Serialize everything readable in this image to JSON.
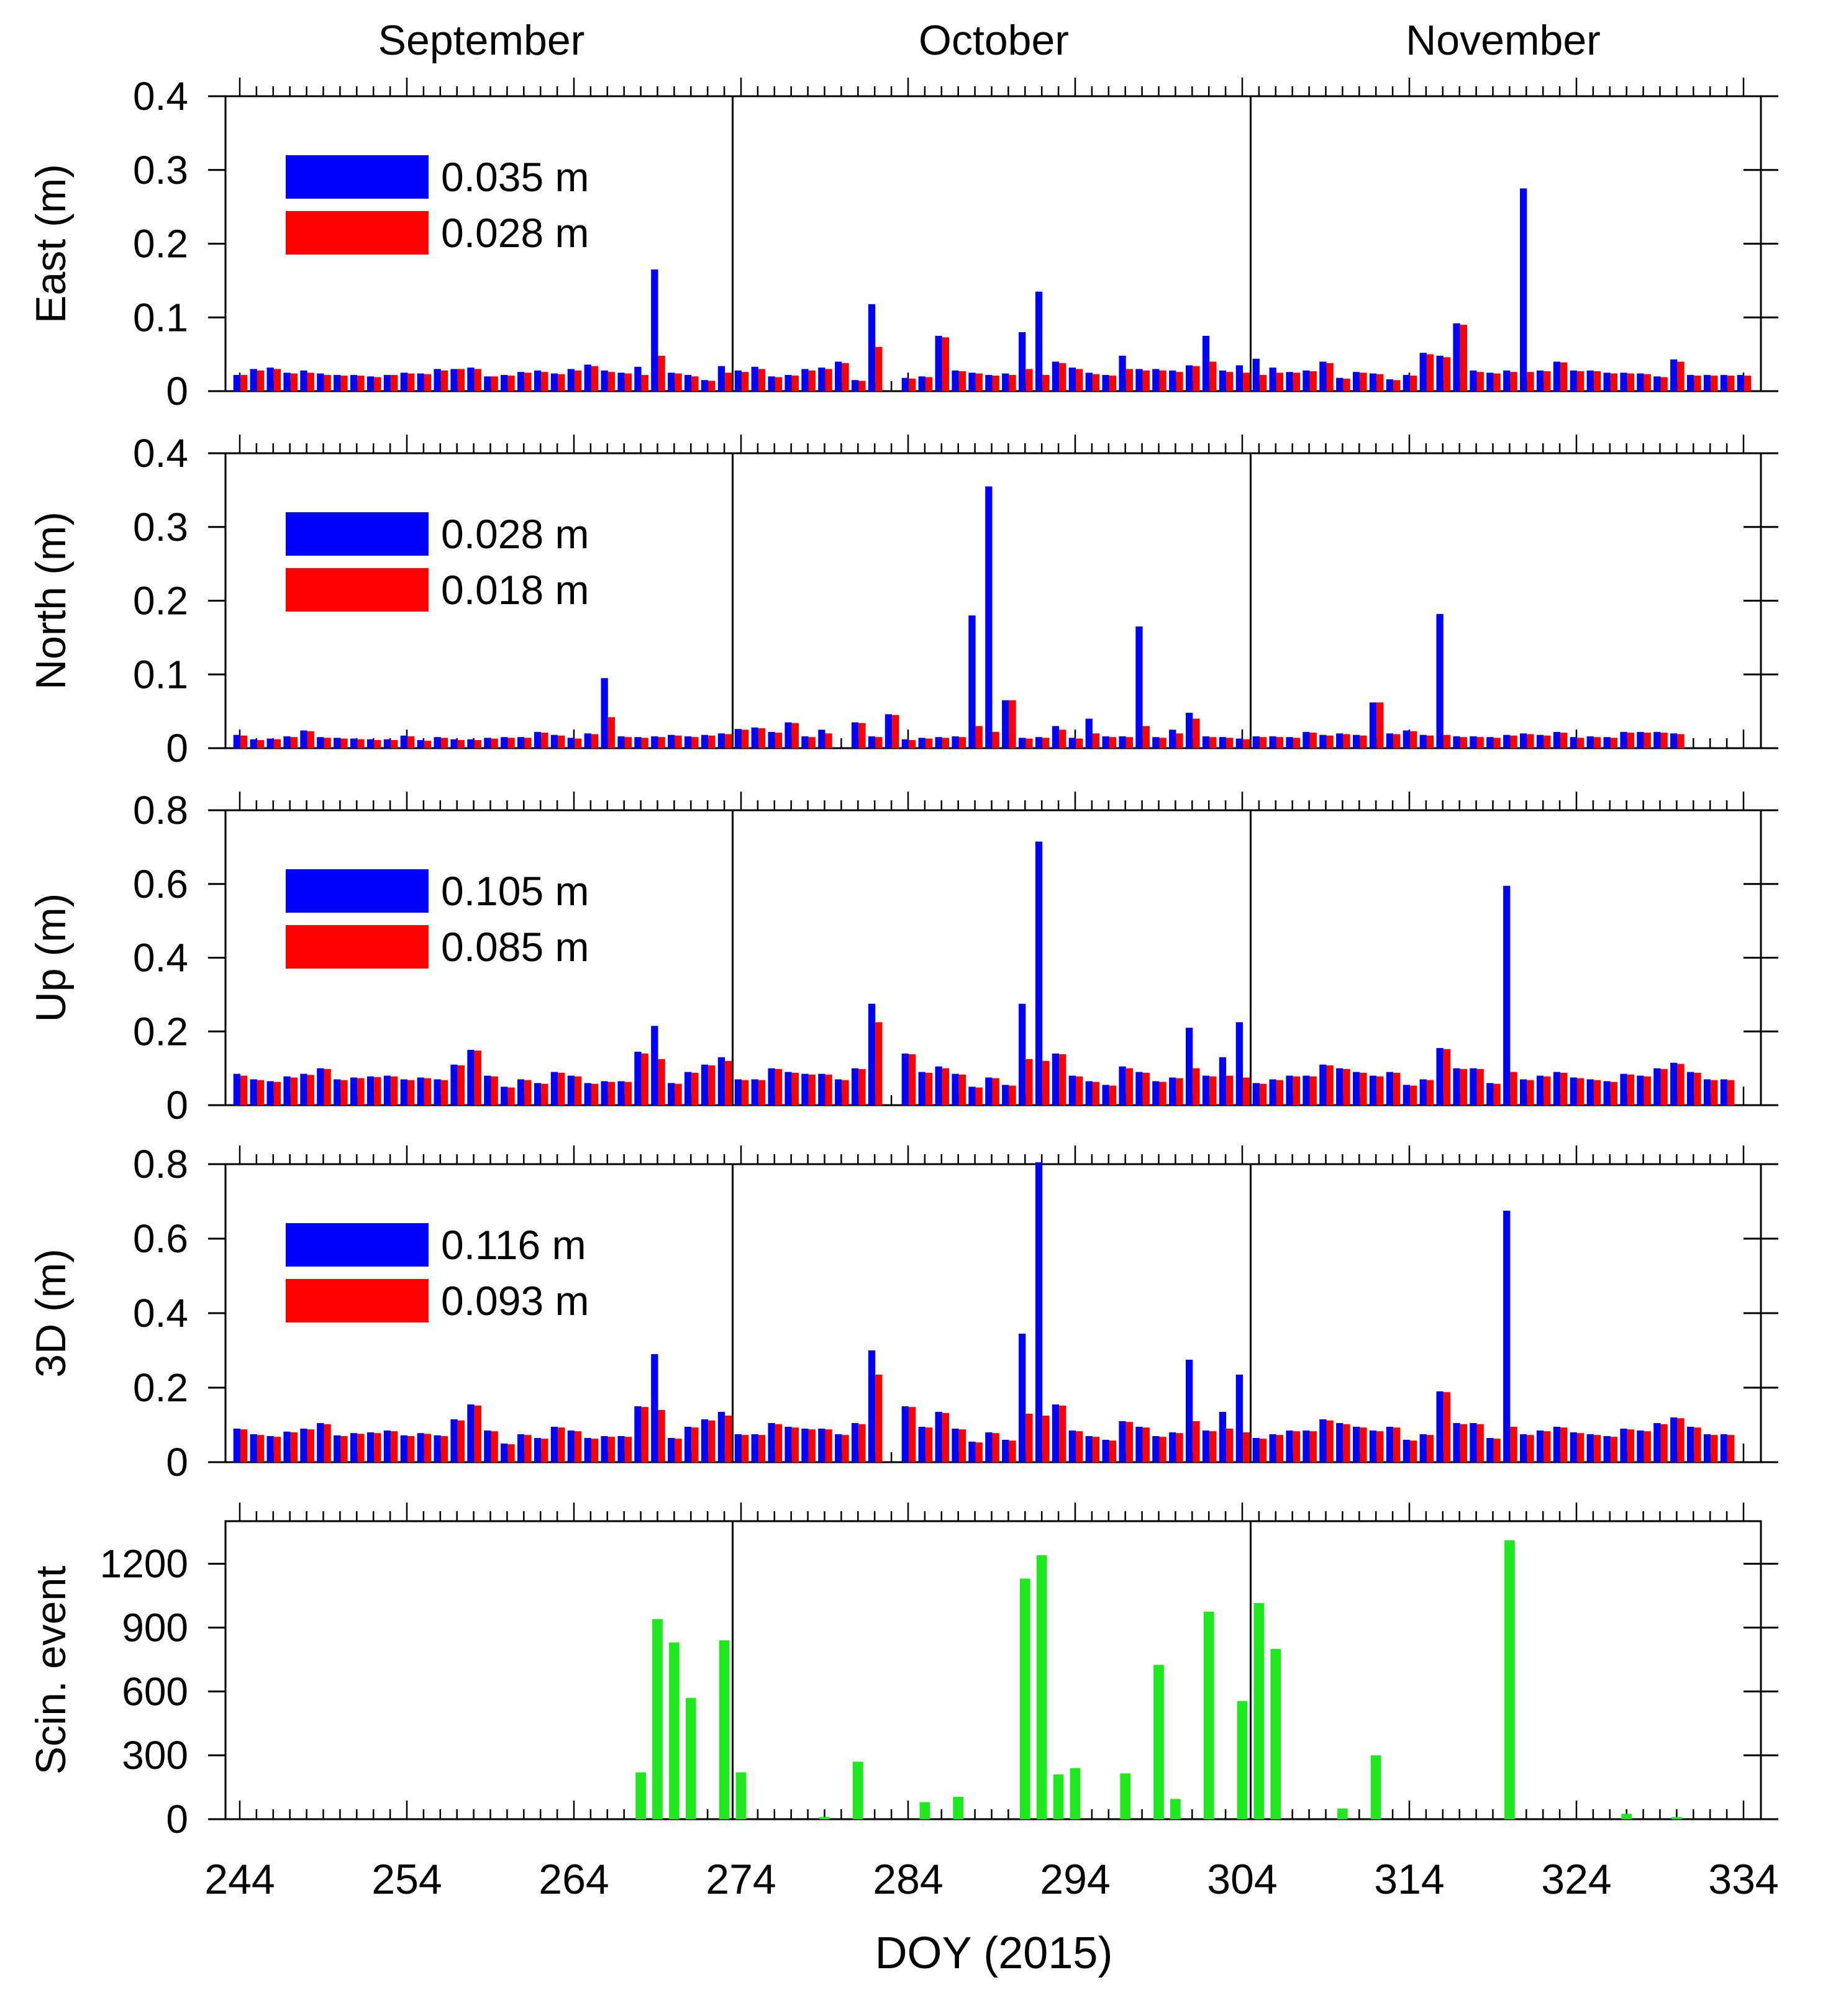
{
  "figure": {
    "xlabel": "DOY (2015)"
  },
  "month_labels": [
    "September",
    "October",
    "November"
  ],
  "month_boundaries": [
    274,
    305
  ],
  "x_ticks": [
    244,
    254,
    264,
    274,
    284,
    294,
    304,
    314,
    324,
    334
  ],
  "colors": {
    "series_a": "#0000ff",
    "series_b": "#ff0000",
    "scintillation": "#1ee81e",
    "axis": "#000000"
  },
  "chart_data": [
    {
      "type": "bar",
      "ylabel": "East (m)",
      "ylim": [
        0,
        0.4
      ],
      "yticks": [
        "0",
        "0.1",
        "0.2",
        "0.3",
        "0.4"
      ],
      "ytick_values": [
        0,
        0.1,
        0.2,
        0.3,
        0.4
      ],
      "legend": [
        "0.035 m",
        "0.028 m"
      ],
      "legend_position": "top-left",
      "x_start": 244,
      "series": [
        {
          "name": "0.035 m",
          "values": [
            0.022,
            0.03,
            0.032,
            0.025,
            0.028,
            0.024,
            0.022,
            0.022,
            0.02,
            0.022,
            0.025,
            0.024,
            0.03,
            0.03,
            0.032,
            0.02,
            0.022,
            0.026,
            0.028,
            0.024,
            0.03,
            0.036,
            0.028,
            0.025,
            0.033,
            0.165,
            0.025,
            0.022,
            0.015,
            0.034,
            0.028,
            0.033,
            0.02,
            0.022,
            0.03,
            0.032,
            0.04,
            0.015,
            0.118,
            null,
            0.018,
            0.02,
            0.075,
            0.028,
            0.025,
            0.022,
            0.024,
            0.08,
            0.135,
            0.04,
            0.032,
            0.025,
            0.022,
            0.048,
            0.03,
            0.03,
            0.028,
            0.035,
            0.075,
            0.028,
            0.035,
            0.044,
            0.032,
            0.026,
            0.028,
            0.04,
            0.018,
            0.026,
            0.024,
            0.016,
            0.022,
            0.052,
            0.048,
            0.092,
            0.028,
            0.025,
            0.028,
            0.275,
            0.028,
            0.04,
            0.028,
            0.028,
            0.025,
            0.025,
            0.024,
            0.02,
            0.043,
            0.022,
            0.022,
            0.022,
            0.022
          ]
        },
        {
          "name": "0.028 m",
          "values": [
            0.022,
            0.028,
            0.03,
            0.024,
            0.025,
            0.022,
            0.021,
            0.021,
            0.019,
            0.022,
            0.024,
            0.023,
            0.028,
            0.03,
            0.03,
            0.02,
            0.021,
            0.025,
            0.026,
            0.023,
            0.028,
            0.034,
            0.026,
            0.024,
            0.022,
            0.048,
            0.024,
            0.02,
            0.014,
            0.025,
            0.026,
            0.03,
            0.019,
            0.021,
            0.028,
            0.03,
            0.038,
            0.014,
            0.06,
            null,
            0.017,
            0.019,
            0.073,
            0.027,
            0.024,
            0.021,
            0.022,
            0.03,
            0.022,
            0.038,
            0.03,
            0.023,
            0.021,
            0.03,
            0.028,
            0.028,
            0.026,
            0.034,
            0.04,
            0.026,
            0.025,
            0.022,
            0.025,
            0.025,
            0.027,
            0.038,
            0.017,
            0.025,
            0.023,
            0.015,
            0.021,
            0.05,
            0.046,
            0.09,
            0.026,
            0.024,
            0.026,
            0.026,
            0.027,
            0.039,
            0.027,
            0.027,
            0.024,
            0.024,
            0.023,
            0.019,
            0.04,
            0.021,
            0.021,
            0.021,
            0.021
          ]
        }
      ]
    },
    {
      "type": "bar",
      "ylabel": "North (m)",
      "ylim": [
        0,
        0.4
      ],
      "yticks": [
        "0",
        "0.1",
        "0.2",
        "0.3",
        "0.4"
      ],
      "ytick_values": [
        0,
        0.1,
        0.2,
        0.3,
        0.4
      ],
      "legend": [
        "0.028 m",
        "0.018 m"
      ],
      "legend_position": "top-left",
      "x_start": 244,
      "series": [
        {
          "name": "0.028 m",
          "values": [
            0.018,
            0.012,
            0.013,
            0.016,
            0.024,
            0.015,
            0.014,
            0.013,
            0.012,
            0.012,
            0.017,
            0.011,
            0.015,
            0.012,
            0.012,
            0.014,
            0.015,
            0.015,
            0.022,
            0.018,
            0.014,
            0.02,
            0.095,
            0.016,
            0.015,
            0.016,
            0.018,
            0.016,
            0.018,
            0.02,
            0.026,
            0.028,
            0.022,
            0.035,
            0.016,
            0.025,
            null,
            0.035,
            0.016,
            0.046,
            0.012,
            0.014,
            0.015,
            0.016,
            0.18,
            0.355,
            0.065,
            0.014,
            0.015,
            0.03,
            0.014,
            0.04,
            0.016,
            0.016,
            0.165,
            0.015,
            0.025,
            0.048,
            0.016,
            0.015,
            0.013,
            0.016,
            0.016,
            0.015,
            0.022,
            0.018,
            0.02,
            0.018,
            0.062,
            0.02,
            0.024,
            0.018,
            0.182,
            0.016,
            0.016,
            0.015,
            0.018,
            0.02,
            0.018,
            0.022,
            0.015,
            0.016,
            0.015,
            0.022,
            0.022,
            0.022,
            0.02
          ]
        },
        {
          "name": "0.018 m",
          "values": [
            0.017,
            0.011,
            0.012,
            0.015,
            0.023,
            0.014,
            0.013,
            0.012,
            0.011,
            0.011,
            0.016,
            0.01,
            0.014,
            0.011,
            0.011,
            0.013,
            0.014,
            0.014,
            0.021,
            0.017,
            0.013,
            0.019,
            0.042,
            0.015,
            0.014,
            0.015,
            0.017,
            0.015,
            0.017,
            0.019,
            0.025,
            0.027,
            0.021,
            0.034,
            0.015,
            0.02,
            null,
            0.034,
            0.015,
            0.045,
            0.011,
            0.013,
            0.014,
            0.015,
            0.03,
            0.022,
            0.065,
            0.013,
            0.014,
            0.025,
            0.013,
            0.02,
            0.015,
            0.015,
            0.03,
            0.014,
            0.02,
            0.04,
            0.015,
            0.014,
            0.012,
            0.015,
            0.015,
            0.014,
            0.021,
            0.017,
            0.019,
            0.017,
            0.062,
            0.019,
            0.023,
            0.017,
            0.018,
            0.015,
            0.015,
            0.014,
            0.017,
            0.019,
            0.017,
            0.021,
            0.014,
            0.015,
            0.014,
            0.021,
            0.021,
            0.021,
            0.019
          ]
        }
      ]
    },
    {
      "type": "bar",
      "ylabel": "Up (m)",
      "ylim": [
        0,
        0.8
      ],
      "yticks": [
        "0",
        "0.2",
        "0.4",
        "0.6",
        "0.8"
      ],
      "ytick_values": [
        0,
        0.2,
        0.4,
        0.6,
        0.8
      ],
      "legend": [
        "0.105 m",
        "0.085 m"
      ],
      "legend_position": "top-left",
      "x_start": 244,
      "series": [
        {
          "name": "0.105 m",
          "values": [
            0.085,
            0.07,
            0.065,
            0.078,
            0.085,
            0.1,
            0.07,
            0.075,
            0.078,
            0.08,
            0.07,
            0.075,
            0.07,
            0.11,
            0.15,
            0.08,
            0.05,
            0.07,
            0.06,
            0.09,
            0.08,
            0.06,
            0.065,
            0.065,
            0.145,
            0.215,
            0.06,
            0.09,
            0.11,
            0.13,
            0.07,
            0.07,
            0.1,
            0.09,
            0.085,
            0.085,
            0.07,
            0.1,
            0.275,
            null,
            0.14,
            0.09,
            0.105,
            0.085,
            0.05,
            0.075,
            0.055,
            0.275,
            0.715,
            0.14,
            0.08,
            0.065,
            0.055,
            0.105,
            0.09,
            0.065,
            0.075,
            0.21,
            0.08,
            0.13,
            0.225,
            0.06,
            0.07,
            0.08,
            0.08,
            0.11,
            0.1,
            0.09,
            0.08,
            0.09,
            0.055,
            0.07,
            0.155,
            0.1,
            0.1,
            0.06,
            0.595,
            0.07,
            0.08,
            0.09,
            0.075,
            0.07,
            0.065,
            0.085,
            0.08,
            0.1,
            0.115,
            0.09,
            0.07,
            0.07
          ]
        },
        {
          "name": "0.085 m",
          "values": [
            0.08,
            0.068,
            0.063,
            0.075,
            0.082,
            0.098,
            0.068,
            0.073,
            0.076,
            0.078,
            0.068,
            0.073,
            0.068,
            0.108,
            0.148,
            0.078,
            0.048,
            0.068,
            0.058,
            0.088,
            0.078,
            0.058,
            0.063,
            0.063,
            0.14,
            0.125,
            0.058,
            0.088,
            0.108,
            0.12,
            0.068,
            0.068,
            0.098,
            0.088,
            0.083,
            0.083,
            0.068,
            0.098,
            0.225,
            null,
            0.138,
            0.088,
            0.1,
            0.083,
            0.048,
            0.073,
            0.053,
            0.125,
            0.12,
            0.138,
            0.078,
            0.063,
            0.053,
            0.1,
            0.088,
            0.063,
            0.073,
            0.1,
            0.078,
            0.08,
            0.075,
            0.058,
            0.068,
            0.078,
            0.078,
            0.108,
            0.098,
            0.088,
            0.078,
            0.088,
            0.053,
            0.068,
            0.152,
            0.098,
            0.098,
            0.058,
            0.09,
            0.068,
            0.078,
            0.088,
            0.073,
            0.068,
            0.063,
            0.083,
            0.078,
            0.098,
            0.112,
            0.088,
            0.068,
            0.068
          ]
        }
      ]
    },
    {
      "type": "bar",
      "ylabel": "3D (m)",
      "ylim": [
        0,
        0.8
      ],
      "yticks": [
        "0",
        "0.2",
        "0.4",
        "0.6",
        "0.8"
      ],
      "ytick_values": [
        0,
        0.2,
        0.4,
        0.6,
        0.8
      ],
      "legend": [
        "0.116 m",
        "0.093 m"
      ],
      "legend_position": "top-left",
      "x_start": 244,
      "series": [
        {
          "name": "0.116 m",
          "values": [
            0.09,
            0.075,
            0.07,
            0.082,
            0.09,
            0.105,
            0.072,
            0.078,
            0.08,
            0.085,
            0.072,
            0.078,
            0.072,
            0.115,
            0.155,
            0.085,
            0.05,
            0.075,
            0.065,
            0.095,
            0.085,
            0.065,
            0.07,
            0.07,
            0.15,
            0.29,
            0.065,
            0.095,
            0.115,
            0.135,
            0.075,
            0.075,
            0.105,
            0.095,
            0.09,
            0.09,
            0.075,
            0.105,
            0.3,
            null,
            0.15,
            0.095,
            0.135,
            0.09,
            0.055,
            0.08,
            0.06,
            0.345,
            0.805,
            0.155,
            0.085,
            0.07,
            0.06,
            0.11,
            0.095,
            0.07,
            0.08,
            0.275,
            0.085,
            0.135,
            0.235,
            0.065,
            0.075,
            0.085,
            0.085,
            0.115,
            0.105,
            0.095,
            0.085,
            0.095,
            0.06,
            0.075,
            0.19,
            0.105,
            0.105,
            0.065,
            0.675,
            0.075,
            0.085,
            0.095,
            0.08,
            0.075,
            0.07,
            0.09,
            0.085,
            0.105,
            0.12,
            0.095,
            0.075,
            0.075
          ]
        },
        {
          "name": "0.093 m",
          "values": [
            0.088,
            0.073,
            0.068,
            0.08,
            0.088,
            0.102,
            0.07,
            0.076,
            0.078,
            0.083,
            0.07,
            0.076,
            0.07,
            0.112,
            0.152,
            0.083,
            0.048,
            0.073,
            0.063,
            0.093,
            0.083,
            0.063,
            0.068,
            0.068,
            0.148,
            0.14,
            0.063,
            0.093,
            0.112,
            0.125,
            0.073,
            0.073,
            0.102,
            0.093,
            0.088,
            0.088,
            0.073,
            0.102,
            0.235,
            null,
            0.148,
            0.093,
            0.132,
            0.088,
            0.053,
            0.078,
            0.058,
            0.13,
            0.125,
            0.152,
            0.083,
            0.068,
            0.058,
            0.108,
            0.093,
            0.068,
            0.078,
            0.11,
            0.083,
            0.09,
            0.08,
            0.063,
            0.073,
            0.083,
            0.083,
            0.112,
            0.102,
            0.093,
            0.083,
            0.093,
            0.058,
            0.073,
            0.188,
            0.102,
            0.102,
            0.063,
            0.095,
            0.073,
            0.083,
            0.093,
            0.078,
            0.073,
            0.068,
            0.088,
            0.083,
            0.102,
            0.118,
            0.093,
            0.073,
            0.073
          ]
        }
      ]
    },
    {
      "type": "bar",
      "ylabel": "Scin. event",
      "ylim": [
        0,
        1400
      ],
      "yticks": [
        "0",
        "300",
        "600",
        "900",
        "1200"
      ],
      "ytick_values": [
        0,
        300,
        600,
        900,
        1200
      ],
      "x": [
        268,
        269,
        270,
        271,
        273,
        274,
        279,
        281,
        285,
        287,
        291,
        292,
        293,
        294,
        297,
        299,
        300,
        302,
        304,
        305,
        306,
        310,
        312,
        320,
        327,
        330
      ],
      "values": [
        220,
        940,
        830,
        570,
        840,
        220,
        10,
        270,
        80,
        105,
        1130,
        1240,
        210,
        240,
        215,
        725,
        95,
        975,
        555,
        1015,
        800,
        50,
        300,
        1310,
        25,
        10
      ]
    }
  ]
}
